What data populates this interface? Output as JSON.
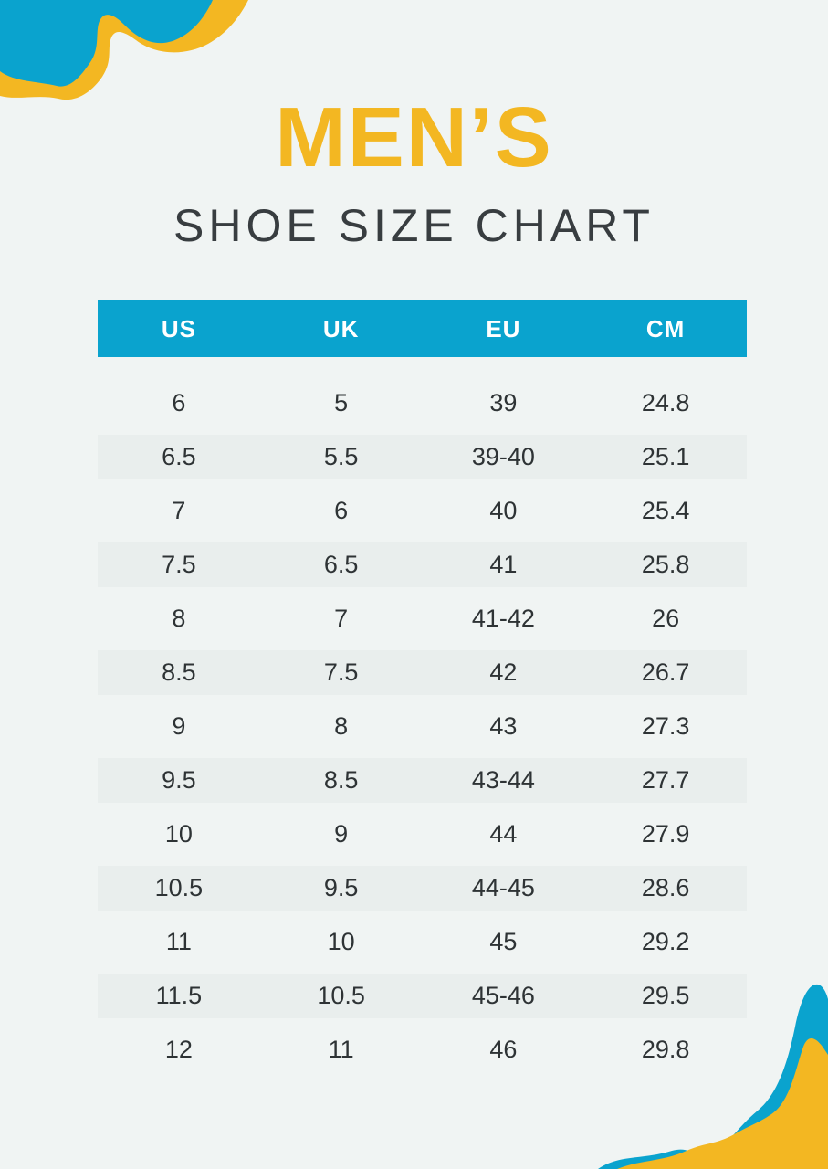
{
  "page": {
    "title_accent": "MEN’S",
    "title_main": "SHOE SIZE CHART"
  },
  "chart_data": {
    "type": "table",
    "title": "MEN’S SHOE SIZE CHART",
    "columns": [
      "US",
      "UK",
      "EU",
      "CM"
    ],
    "rows": [
      [
        "6",
        "5",
        "39",
        "24.8"
      ],
      [
        "6.5",
        "5.5",
        "39-40",
        "25.1"
      ],
      [
        "7",
        "6",
        "40",
        "25.4"
      ],
      [
        "7.5",
        "6.5",
        "41",
        "25.8"
      ],
      [
        "8",
        "7",
        "41-42",
        "26"
      ],
      [
        "8.5",
        "7.5",
        "42",
        "26.7"
      ],
      [
        "9",
        "8",
        "43",
        "27.3"
      ],
      [
        "9.5",
        "8.5",
        "43-44",
        "27.7"
      ],
      [
        "10",
        "9",
        "44",
        "27.9"
      ],
      [
        "10.5",
        "9.5",
        "44-45",
        "28.6"
      ],
      [
        "11",
        "10",
        "45",
        "29.2"
      ],
      [
        "11.5",
        "10.5",
        "45-46",
        "29.5"
      ],
      [
        "12",
        "11",
        "46",
        "29.8"
      ]
    ],
    "layout": {
      "header_background": "#0AA3CE",
      "alternate_row_background": "#E9EEED",
      "grid": false,
      "column_alignment": "center"
    }
  },
  "colors": {
    "background": "#F0F4F3",
    "accent_yellow": "#F3B722",
    "accent_blue": "#0AA3CE",
    "heading_text": "#383D40",
    "cell_text": "#2E3335",
    "header_text": "#FFFFFF"
  },
  "decorations": {
    "top_left": "blue-yellow-wave",
    "bottom_right": "yellow-blue-wave"
  }
}
